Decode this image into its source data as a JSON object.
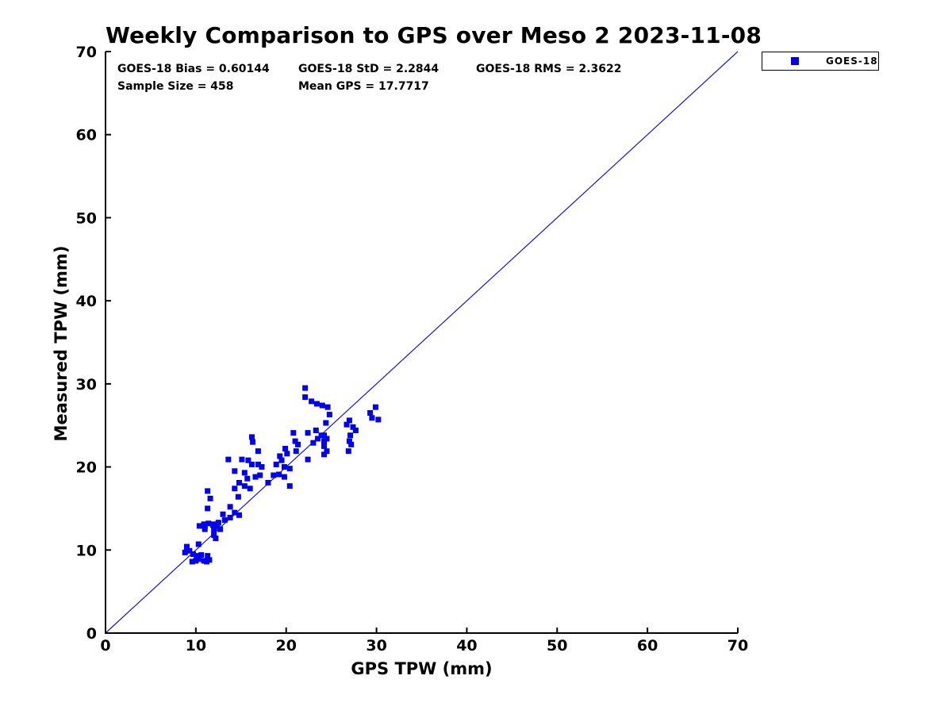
{
  "chart_data": {
    "type": "scatter",
    "title": "Weekly Comparison to GPS over Meso 2 2023-11-08",
    "xlabel": "GPS TPW (mm)",
    "ylabel": "Measured TPW (mm)",
    "xlim": [
      0,
      70
    ],
    "ylim": [
      0,
      70
    ],
    "xticks": [
      0,
      10,
      20,
      30,
      40,
      50,
      60,
      70
    ],
    "yticks": [
      0,
      10,
      20,
      30,
      40,
      50,
      60,
      70
    ],
    "grid": false,
    "colors": {
      "marker": "#0000EE",
      "reference_line": "#1515D6",
      "axis": "#000000",
      "background": "#FFFFFF"
    },
    "stats": {
      "bias": "GOES-18 Bias = 0.60144",
      "std": "GOES-18 StD = 2.2844",
      "rms": "GOES-18 RMS = 2.3622",
      "sample_size": "Sample Size = 458",
      "mean_gps": "Mean GPS = 17.7717"
    },
    "legend": {
      "position": "top-right-outside",
      "entries": [
        {
          "label": "GOES-18",
          "marker": "square",
          "color": "#0000EE"
        }
      ]
    },
    "reference_line": {
      "x": [
        0,
        70
      ],
      "y": [
        0,
        70
      ]
    },
    "series": [
      {
        "name": "GOES-18",
        "marker": "square",
        "marker_size": 7,
        "points": [
          [
            8.8,
            9.7
          ],
          [
            9.0,
            10.0
          ],
          [
            9.3,
            9.9
          ],
          [
            9.7,
            9.5
          ],
          [
            10.1,
            9.3
          ],
          [
            10.3,
            8.9
          ],
          [
            10.6,
            9.4
          ],
          [
            10.9,
            8.7
          ],
          [
            11.2,
            8.6
          ],
          [
            11.5,
            8.8
          ],
          [
            11.3,
            9.3
          ],
          [
            10.0,
            8.7
          ],
          [
            9.6,
            8.6
          ],
          [
            10.3,
            10.7
          ],
          [
            12.2,
            11.4
          ],
          [
            9.0,
            10.4
          ],
          [
            10.4,
            12.9
          ],
          [
            10.9,
            13.1
          ],
          [
            11.4,
            13.2
          ],
          [
            11.9,
            13.0
          ],
          [
            12.4,
            12.8
          ],
          [
            12.7,
            12.5
          ],
          [
            12.0,
            12.4
          ],
          [
            11.0,
            12.5
          ],
          [
            12.0,
            11.8
          ],
          [
            11.3,
            17.1
          ],
          [
            11.6,
            16.2
          ],
          [
            11.3,
            15.0
          ],
          [
            13.8,
            15.2
          ],
          [
            14.3,
            14.5
          ],
          [
            14.8,
            14.2
          ],
          [
            13.8,
            13.9
          ],
          [
            13.2,
            13.6
          ],
          [
            12.5,
            13.3
          ],
          [
            11.9,
            13.1
          ],
          [
            11.0,
            12.9
          ],
          [
            13.0,
            14.3
          ],
          [
            13.6,
            20.9
          ],
          [
            15.1,
            20.9
          ],
          [
            15.8,
            20.8
          ],
          [
            16.2,
            20.3
          ],
          [
            16.9,
            20.3
          ],
          [
            17.3,
            20.0
          ],
          [
            17.1,
            19.0
          ],
          [
            16.6,
            18.8
          ],
          [
            15.4,
            19.3
          ],
          [
            14.3,
            19.5
          ],
          [
            15.7,
            18.6
          ],
          [
            14.8,
            18.1
          ],
          [
            15.4,
            17.7
          ],
          [
            16.0,
            17.4
          ],
          [
            16.3,
            23.0
          ],
          [
            16.9,
            21.9
          ],
          [
            14.3,
            17.4
          ],
          [
            14.7,
            16.4
          ],
          [
            18.6,
            19.0
          ],
          [
            19.2,
            19.1
          ],
          [
            19.8,
            18.8
          ],
          [
            18.0,
            18.1
          ],
          [
            20.4,
            17.7
          ],
          [
            19.9,
            22.2
          ],
          [
            20.1,
            21.6
          ],
          [
            19.3,
            21.3
          ],
          [
            19.5,
            20.8
          ],
          [
            18.9,
            20.3
          ],
          [
            19.8,
            20.0
          ],
          [
            20.4,
            19.8
          ],
          [
            16.2,
            23.6
          ],
          [
            20.8,
            24.1
          ],
          [
            21.0,
            23.1
          ],
          [
            21.3,
            22.7
          ],
          [
            21.1,
            21.9
          ],
          [
            22.1,
            29.5
          ],
          [
            22.1,
            28.4
          ],
          [
            22.8,
            27.9
          ],
          [
            23.4,
            27.6
          ],
          [
            24.0,
            27.4
          ],
          [
            24.6,
            27.2
          ],
          [
            24.8,
            26.3
          ],
          [
            24.4,
            25.3
          ],
          [
            24.2,
            23.8
          ],
          [
            24.5,
            23.4
          ],
          [
            24.2,
            22.5
          ],
          [
            24.5,
            21.9
          ],
          [
            24.2,
            21.5
          ],
          [
            22.4,
            24.1
          ],
          [
            23.3,
            24.4
          ],
          [
            23.9,
            23.8
          ],
          [
            24.2,
            23.1
          ],
          [
            23.5,
            23.4
          ],
          [
            23.0,
            22.9
          ],
          [
            22.4,
            20.9
          ],
          [
            27.0,
            25.6
          ],
          [
            26.7,
            25.1
          ],
          [
            27.4,
            24.8
          ],
          [
            27.7,
            24.4
          ],
          [
            27.1,
            23.8
          ],
          [
            27.0,
            23.1
          ],
          [
            27.2,
            22.7
          ],
          [
            26.9,
            21.9
          ],
          [
            29.3,
            26.5
          ],
          [
            29.9,
            27.2
          ],
          [
            30.2,
            25.7
          ],
          [
            29.5,
            25.9
          ]
        ]
      }
    ]
  }
}
